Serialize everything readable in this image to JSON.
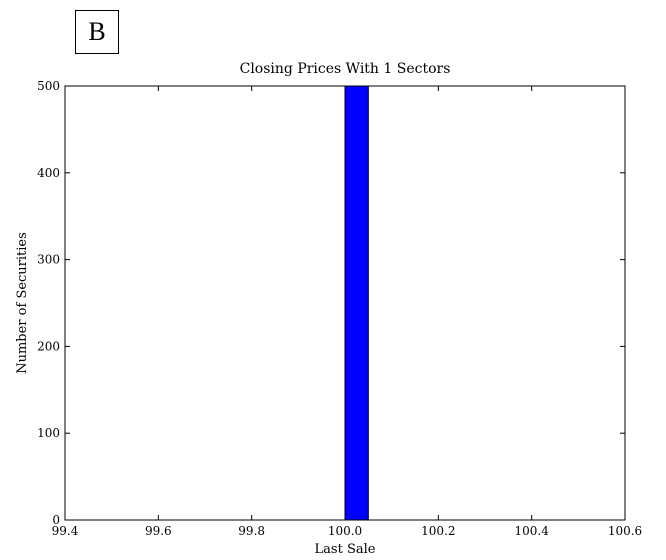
{
  "panel_label": "B",
  "chart_data": {
    "type": "bar",
    "title": "Closing Prices With 1 Sectors",
    "xlabel": "Last Sale",
    "ylabel": "Number of Securities",
    "xlim": [
      99.4,
      100.6
    ],
    "ylim": [
      0,
      500
    ],
    "xticks": [
      "99.4",
      "99.6",
      "99.8",
      "100.0",
      "100.2",
      "100.4",
      "100.6"
    ],
    "yticks": [
      "0",
      "100",
      "200",
      "300",
      "400",
      "500"
    ],
    "grid": false,
    "bars": [
      {
        "x_start": 100.0,
        "x_end": 100.05,
        "value": 500
      }
    ],
    "bar_color": "#0000ff"
  }
}
